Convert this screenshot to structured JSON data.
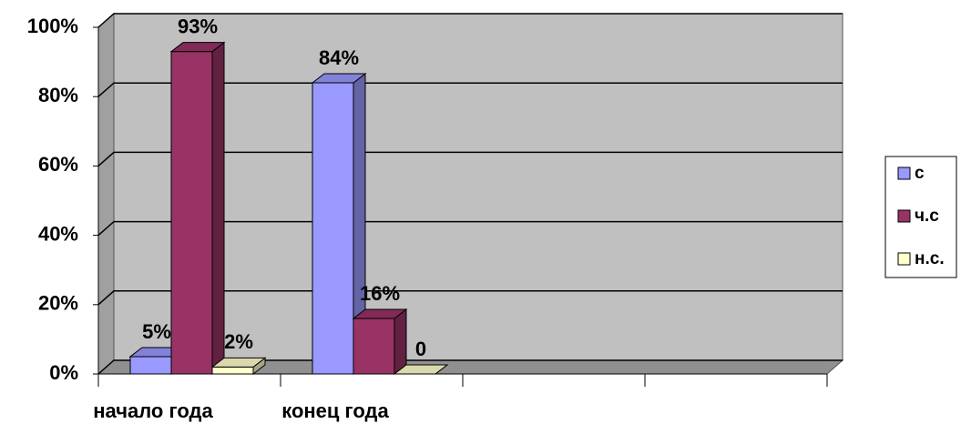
{
  "chart_data": {
    "type": "bar3d",
    "categories": [
      "начало года",
      "конец года",
      null,
      null
    ],
    "series": [
      {
        "name": "с",
        "color": "#9999ff",
        "values": [
          5,
          84,
          null,
          null
        ],
        "value_labels": [
          "5%",
          "84%",
          null,
          null
        ]
      },
      {
        "name": "ч.с",
        "color": "#993366",
        "values": [
          93,
          16,
          null,
          null
        ],
        "value_labels": [
          "93%",
          "16%",
          null,
          null
        ]
      },
      {
        "name": "н.с.",
        "color": "#ffffcc",
        "values": [
          2,
          0,
          null,
          null
        ],
        "value_labels": [
          "2%",
          "0",
          null,
          null
        ]
      }
    ],
    "ylim": [
      0,
      100
    ],
    "yticks": [
      {
        "value": 0,
        "label": "0%"
      },
      {
        "value": 20,
        "label": "20%"
      },
      {
        "value": 40,
        "label": "40%"
      },
      {
        "value": 60,
        "label": "60%"
      },
      {
        "value": 80,
        "label": "80%"
      },
      {
        "value": 100,
        "label": "100%"
      }
    ],
    "grid": true,
    "legend": "right"
  }
}
